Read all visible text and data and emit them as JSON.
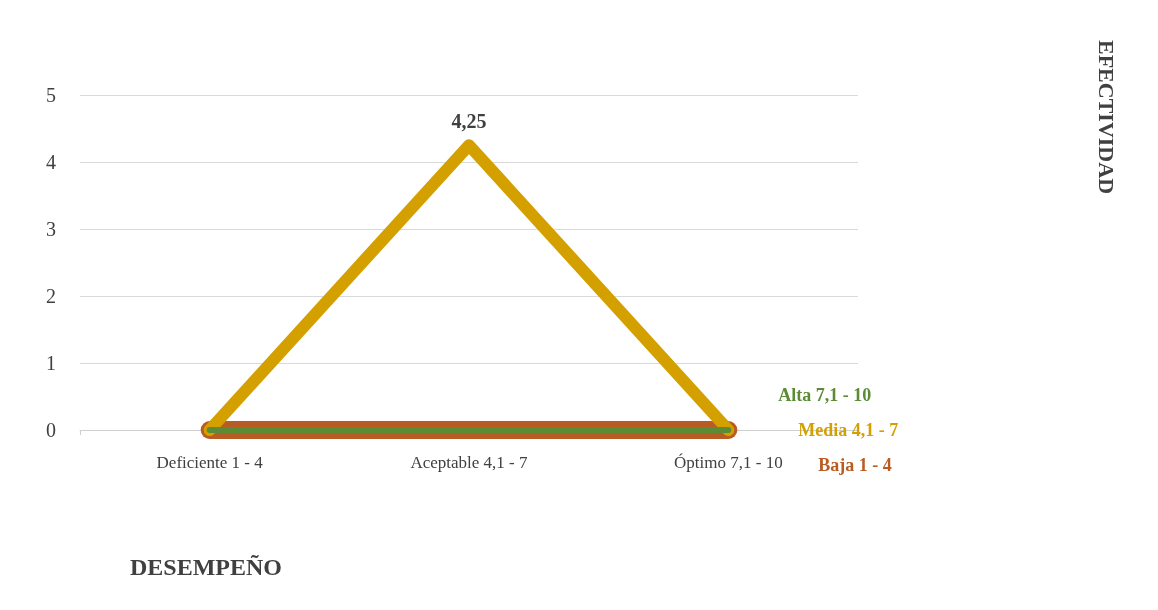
{
  "chart_data": {
    "type": "line",
    "xlabel": "DESEMPEÑO",
    "legend_title": "EFECTIVIDAD",
    "categories": [
      "Deficiente 1 - 4",
      "Aceptable 4,1 - 7",
      "Óptimo 7,1 - 10"
    ],
    "series": [
      {
        "name": "Baja 1 - 4",
        "color": "#b85c24",
        "values": [
          0,
          0,
          0
        ]
      },
      {
        "name": "Media 4,1 - 7",
        "color": "#d4a000",
        "values": [
          0,
          4.25,
          0
        ],
        "value_labels": [
          null,
          "4,25",
          null
        ]
      },
      {
        "name": "Alta 7,1 - 10",
        "color": "#5b8c35",
        "values": [
          0,
          0,
          0
        ]
      }
    ],
    "ylim": [
      0,
      5
    ],
    "yticks": [
      0,
      1,
      2,
      3,
      4,
      5
    ],
    "grid": "y",
    "marker": "none",
    "line_style": "solid",
    "legend": false
  }
}
